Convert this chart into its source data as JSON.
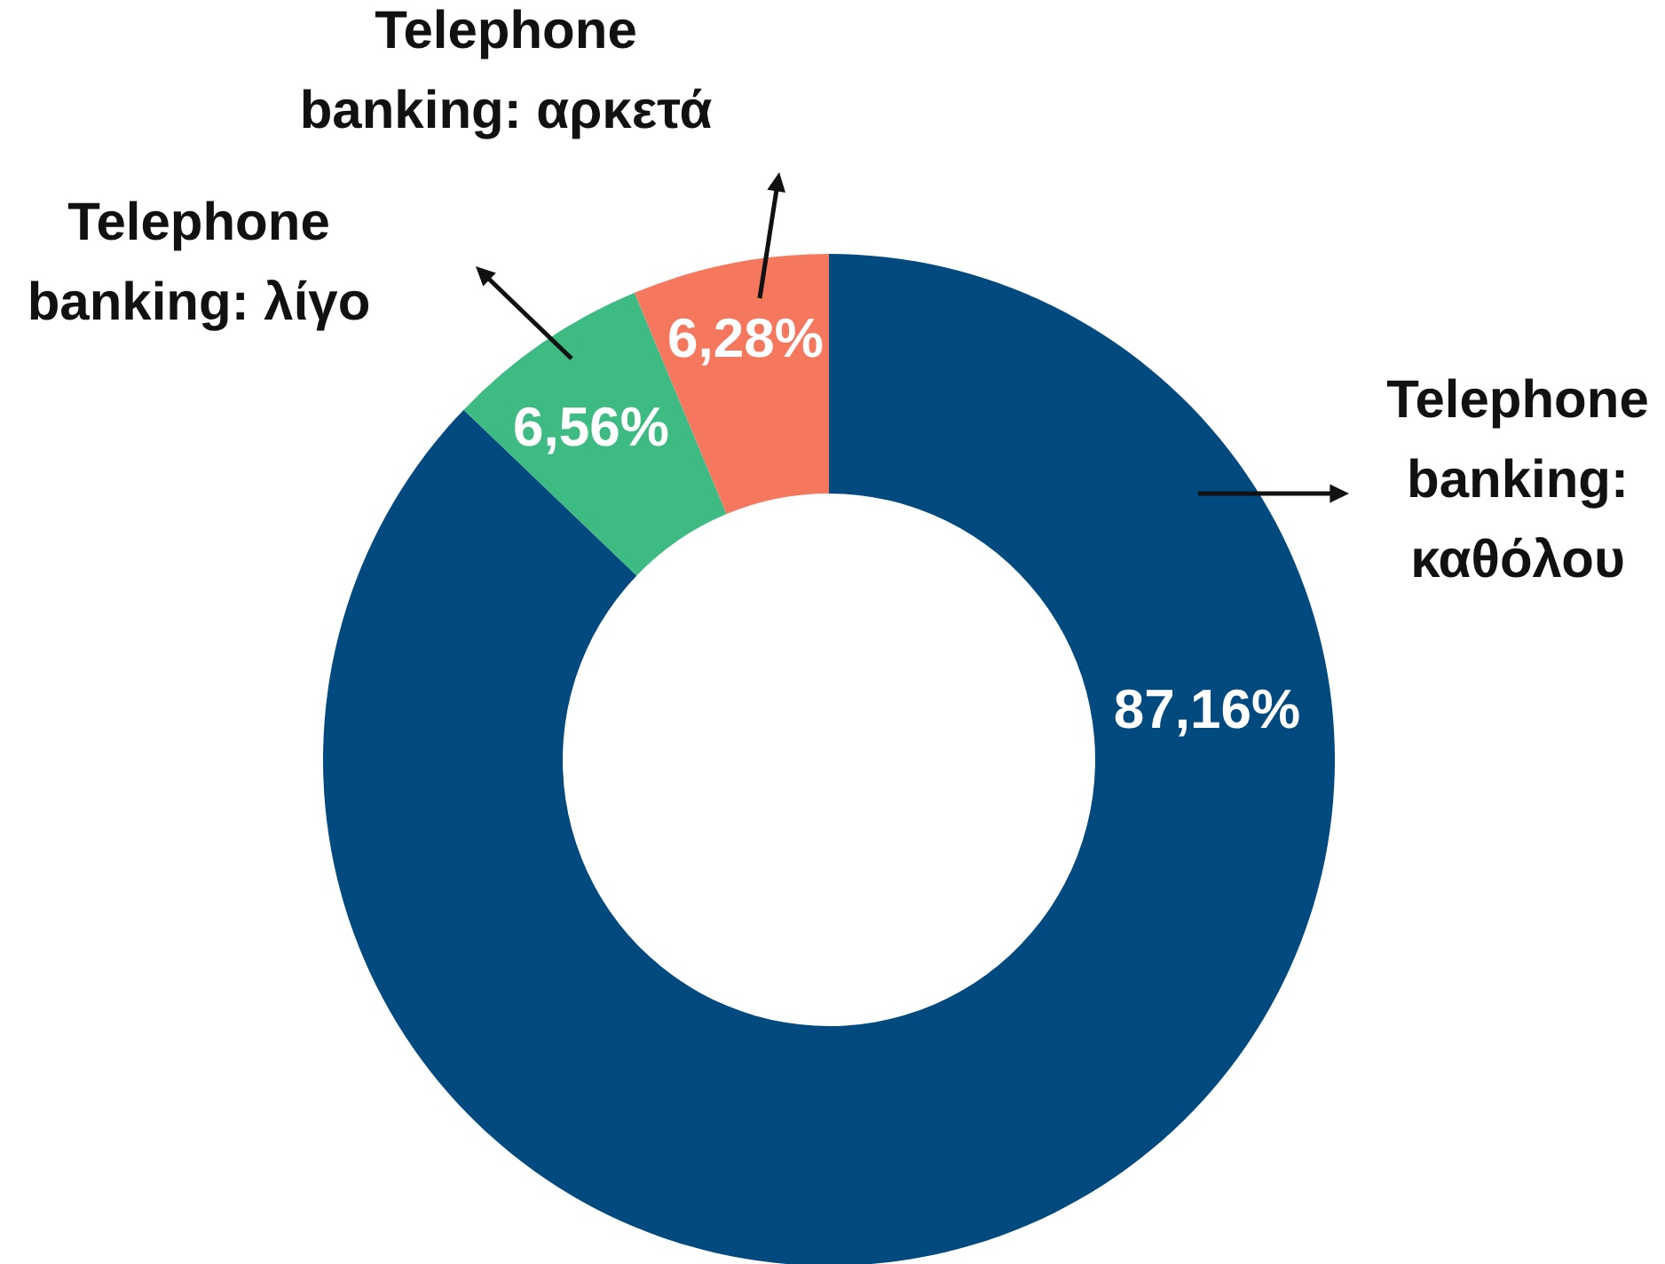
{
  "chart_data": {
    "type": "donut",
    "categories": [
      "Telephone banking: καθόλου",
      "Telephone banking: λίγο",
      "Telephone banking: αρκετά"
    ],
    "values": [
      87.16,
      6.56,
      6.28
    ],
    "colors": [
      "#004a7f",
      "#3dbb82",
      "#f4775e"
    ],
    "value_labels": [
      "87,16%",
      "6,56%",
      "6,28%"
    ]
  }
}
